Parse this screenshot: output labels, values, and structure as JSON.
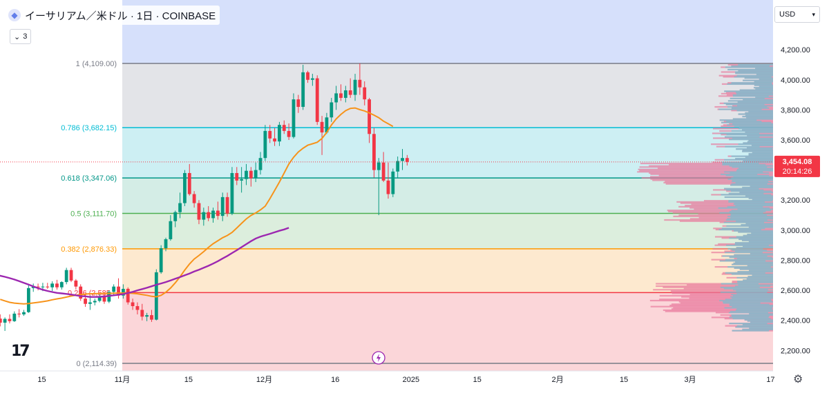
{
  "header": {
    "coin_icon": "ethereum-icon",
    "symbol_line": "イーサリアム／米ドル · 1日 · COINBASE"
  },
  "indicator_count": "3",
  "currency_selector": "USD",
  "settings_icon": "gear-icon",
  "logo_icon": "tradingview-logo",
  "event_icon": "lightning-icon",
  "price_label": {
    "price": "3,454.08",
    "countdown": "20:14:26",
    "color": "#f23645"
  },
  "colors": {
    "up": "#089981",
    "down": "#f23645",
    "ma_short": "#f7931a",
    "ma_long": "#9c27b0"
  },
  "chart_data": {
    "type": "candlestick",
    "y_range": [
      2114.39,
      4250
    ],
    "y_ticks": [
      "2,200.00",
      "2,400.00",
      "2,600.00",
      "2,800.00",
      "3,000.00",
      "3,200.00",
      "3,400.00",
      "3,600.00",
      "3,800.00",
      "4,000.00",
      "4,200.00"
    ],
    "y_tick_values": [
      2200,
      2400,
      2600,
      2800,
      3000,
      3200,
      3400,
      3600,
      3800,
      4000,
      4200
    ],
    "x_ticks": [
      {
        "label": "15",
        "day": -17
      },
      {
        "label": "11月",
        "day": 0
      },
      {
        "label": "15",
        "day": 14
      },
      {
        "label": "12月",
        "day": 30
      },
      {
        "label": "16",
        "day": 45
      },
      {
        "label": "2025",
        "day": 61
      },
      {
        "label": "15",
        "day": 75
      },
      {
        "label": "2月",
        "day": 92
      },
      {
        "label": "15",
        "day": 106
      },
      {
        "label": "3月",
        "day": 120
      },
      {
        "label": "17",
        "day": 137
      }
    ],
    "fib_levels": [
      {
        "label": "1 (4,109.00)",
        "value": 4109.0,
        "color": "#787b86"
      },
      {
        "label": "0.786 (3,682.15)",
        "value": 3682.15,
        "color": "#00bcd4"
      },
      {
        "label": "0.618 (3,347.06)",
        "value": 3347.06,
        "color": "#009688"
      },
      {
        "label": "0.5 (3,111.70)",
        "value": 3111.7,
        "color": "#4caf50"
      },
      {
        "label": "0.382 (2,876.33)",
        "value": 2876.33,
        "color": "#ff9800"
      },
      {
        "label": "0.236 (2,585...",
        "value": 2585.0,
        "color": "#f23645"
      },
      {
        "label": "0 (2,114.39)",
        "value": 2114.39,
        "color": "#787b86"
      }
    ],
    "candles": [
      {
        "o": 2412,
        "h": 2440,
        "l": 2360,
        "c": 2385
      },
      {
        "o": 2385,
        "h": 2420,
        "l": 2330,
        "c": 2410
      },
      {
        "o": 2410,
        "h": 2440,
        "l": 2380,
        "c": 2395
      },
      {
        "o": 2395,
        "h": 2460,
        "l": 2390,
        "c": 2445
      },
      {
        "o": 2445,
        "h": 2475,
        "l": 2420,
        "c": 2440
      },
      {
        "o": 2440,
        "h": 2470,
        "l": 2430,
        "c": 2455
      },
      {
        "o": 2455,
        "h": 2640,
        "l": 2450,
        "c": 2615
      },
      {
        "o": 2615,
        "h": 2645,
        "l": 2590,
        "c": 2625
      },
      {
        "o": 2625,
        "h": 2645,
        "l": 2600,
        "c": 2620
      },
      {
        "o": 2620,
        "h": 2650,
        "l": 2595,
        "c": 2625
      },
      {
        "o": 2625,
        "h": 2650,
        "l": 2610,
        "c": 2620
      },
      {
        "o": 2620,
        "h": 2660,
        "l": 2595,
        "c": 2645
      },
      {
        "o": 2645,
        "h": 2670,
        "l": 2605,
        "c": 2620
      },
      {
        "o": 2620,
        "h": 2660,
        "l": 2605,
        "c": 2655
      },
      {
        "o": 2655,
        "h": 2750,
        "l": 2640,
        "c": 2735
      },
      {
        "o": 2735,
        "h": 2750,
        "l": 2655,
        "c": 2665
      },
      {
        "o": 2665,
        "h": 2675,
        "l": 2605,
        "c": 2625
      },
      {
        "o": 2625,
        "h": 2640,
        "l": 2530,
        "c": 2545
      },
      {
        "o": 2545,
        "h": 2580,
        "l": 2490,
        "c": 2510
      },
      {
        "o": 2510,
        "h": 2565,
        "l": 2470,
        "c": 2520
      },
      {
        "o": 2520,
        "h": 2545,
        "l": 2500,
        "c": 2530
      },
      {
        "o": 2530,
        "h": 2575,
        "l": 2520,
        "c": 2555
      },
      {
        "o": 2555,
        "h": 2580,
        "l": 2510,
        "c": 2525
      },
      {
        "o": 2525,
        "h": 2600,
        "l": 2515,
        "c": 2590
      },
      {
        "o": 2590,
        "h": 2640,
        "l": 2570,
        "c": 2625
      },
      {
        "o": 2625,
        "h": 2680,
        "l": 2545,
        "c": 2565
      },
      {
        "o": 2565,
        "h": 2640,
        "l": 2545,
        "c": 2610
      },
      {
        "o": 2610,
        "h": 2620,
        "l": 2505,
        "c": 2520
      },
      {
        "o": 2520,
        "h": 2545,
        "l": 2470,
        "c": 2495
      },
      {
        "o": 2495,
        "h": 2520,
        "l": 2440,
        "c": 2470
      },
      {
        "o": 2470,
        "h": 2510,
        "l": 2400,
        "c": 2425
      },
      {
        "o": 2425,
        "h": 2450,
        "l": 2395,
        "c": 2435
      },
      {
        "o": 2435,
        "h": 2470,
        "l": 2390,
        "c": 2405
      },
      {
        "o": 2405,
        "h": 2740,
        "l": 2400,
        "c": 2720
      },
      {
        "o": 2720,
        "h": 2900,
        "l": 2710,
        "c": 2880
      },
      {
        "o": 2880,
        "h": 2950,
        "l": 2860,
        "c": 2940
      },
      {
        "o": 2940,
        "h": 3100,
        "l": 2930,
        "c": 3060
      },
      {
        "o": 3060,
        "h": 3130,
        "l": 3020,
        "c": 3120
      },
      {
        "o": 3120,
        "h": 3250,
        "l": 3080,
        "c": 3180
      },
      {
        "o": 3180,
        "h": 3400,
        "l": 3160,
        "c": 3380
      },
      {
        "o": 3380,
        "h": 3440,
        "l": 3230,
        "c": 3240
      },
      {
        "o": 3240,
        "h": 3260,
        "l": 3150,
        "c": 3180
      },
      {
        "o": 3180,
        "h": 3200,
        "l": 3040,
        "c": 3070
      },
      {
        "o": 3070,
        "h": 3150,
        "l": 3030,
        "c": 3120
      },
      {
        "o": 3120,
        "h": 3160,
        "l": 3060,
        "c": 3080
      },
      {
        "o": 3080,
        "h": 3150,
        "l": 3050,
        "c": 3130
      },
      {
        "o": 3130,
        "h": 3190,
        "l": 3070,
        "c": 3095
      },
      {
        "o": 3095,
        "h": 3250,
        "l": 3060,
        "c": 3220
      },
      {
        "o": 3220,
        "h": 3250,
        "l": 3090,
        "c": 3110
      },
      {
        "o": 3110,
        "h": 3420,
        "l": 3100,
        "c": 3380
      },
      {
        "o": 3380,
        "h": 3420,
        "l": 3300,
        "c": 3330
      },
      {
        "o": 3330,
        "h": 3420,
        "l": 3250,
        "c": 3340
      },
      {
        "o": 3340,
        "h": 3440,
        "l": 3300,
        "c": 3395
      },
      {
        "o": 3395,
        "h": 3420,
        "l": 3290,
        "c": 3345
      },
      {
        "o": 3345,
        "h": 3450,
        "l": 3320,
        "c": 3400
      },
      {
        "o": 3400,
        "h": 3520,
        "l": 3370,
        "c": 3480
      },
      {
        "o": 3480,
        "h": 3700,
        "l": 3460,
        "c": 3660
      },
      {
        "o": 3660,
        "h": 3700,
        "l": 3580,
        "c": 3610
      },
      {
        "o": 3610,
        "h": 3680,
        "l": 3560,
        "c": 3590
      },
      {
        "o": 3590,
        "h": 3720,
        "l": 3560,
        "c": 3700
      },
      {
        "o": 3700,
        "h": 3730,
        "l": 3640,
        "c": 3660
      },
      {
        "o": 3660,
        "h": 3710,
        "l": 3600,
        "c": 3620
      },
      {
        "o": 3620,
        "h": 3910,
        "l": 3610,
        "c": 3870
      },
      {
        "o": 3870,
        "h": 3900,
        "l": 3780,
        "c": 3820
      },
      {
        "o": 3820,
        "h": 4100,
        "l": 3800,
        "c": 4050
      },
      {
        "o": 4050,
        "h": 4060,
        "l": 3980,
        "c": 4000
      },
      {
        "o": 4000,
        "h": 4040,
        "l": 3960,
        "c": 4010
      },
      {
        "o": 4010,
        "h": 4030,
        "l": 3700,
        "c": 3720
      },
      {
        "o": 3720,
        "h": 3760,
        "l": 3500,
        "c": 3650
      },
      {
        "o": 3650,
        "h": 3780,
        "l": 3640,
        "c": 3750
      },
      {
        "o": 3750,
        "h": 3880,
        "l": 3720,
        "c": 3850
      },
      {
        "o": 3850,
        "h": 3960,
        "l": 3800,
        "c": 3910
      },
      {
        "o": 3910,
        "h": 3970,
        "l": 3860,
        "c": 3880
      },
      {
        "o": 3880,
        "h": 3960,
        "l": 3850,
        "c": 3930
      },
      {
        "o": 3930,
        "h": 4010,
        "l": 3880,
        "c": 3900
      },
      {
        "o": 3900,
        "h": 4040,
        "l": 3860,
        "c": 4000
      },
      {
        "o": 4000,
        "h": 4109,
        "l": 3900,
        "c": 3950
      },
      {
        "o": 3950,
        "h": 3990,
        "l": 3830,
        "c": 3870
      },
      {
        "o": 3870,
        "h": 3880,
        "l": 3580,
        "c": 3640
      },
      {
        "o": 3640,
        "h": 3680,
        "l": 3350,
        "c": 3400
      },
      {
        "o": 3400,
        "h": 3480,
        "l": 3100,
        "c": 3450
      },
      {
        "o": 3450,
        "h": 3520,
        "l": 3320,
        "c": 3330
      },
      {
        "o": 3330,
        "h": 3450,
        "l": 3210,
        "c": 3240
      },
      {
        "o": 3240,
        "h": 3410,
        "l": 3220,
        "c": 3390
      },
      {
        "o": 3390,
        "h": 3490,
        "l": 3350,
        "c": 3460
      },
      {
        "o": 3460,
        "h": 3540,
        "l": 3400,
        "c": 3480
      },
      {
        "o": 3480,
        "h": 3500,
        "l": 3430,
        "c": 3454.08
      }
    ],
    "ma_short": [
      2540,
      2530,
      2520,
      2515,
      2512,
      2510,
      2512,
      2516,
      2520,
      2525,
      2530,
      2537,
      2543,
      2548,
      2555,
      2562,
      2568,
      2572,
      2575,
      2577,
      2578,
      2579,
      2580,
      2580,
      2581,
      2582,
      2582,
      2582,
      2580,
      2577,
      2572,
      2567,
      2560,
      2557,
      2567,
      2587,
      2615,
      2650,
      2690,
      2735,
      2775,
      2808,
      2832,
      2857,
      2885,
      2910,
      2930,
      2950,
      2965,
      2985,
      3015,
      3045,
      3075,
      3098,
      3115,
      3135,
      3160,
      3210,
      3265,
      3320,
      3380,
      3440,
      3485,
      3520,
      3545,
      3565,
      3575,
      3585,
      3610,
      3650,
      3700,
      3740,
      3770,
      3795,
      3810,
      3813,
      3802,
      3793,
      3780,
      3765,
      3748,
      3725,
      3708,
      3690
    ],
    "ma_long": [
      2745,
      2735,
      2726,
      2718,
      2711,
      2704,
      2697,
      2690,
      2681,
      2672,
      2661,
      2650,
      2638,
      2626,
      2614,
      2604,
      2596,
      2589,
      2583,
      2580,
      2576,
      2572,
      2567,
      2562,
      2560,
      2556,
      2556,
      2557,
      2559,
      2563,
      2567,
      2571,
      2575,
      2582,
      2590,
      2600,
      2608,
      2617,
      2627,
      2637,
      2646,
      2655,
      2666,
      2677,
      2688,
      2700,
      2712,
      2725,
      2737,
      2750,
      2763,
      2778,
      2794,
      2812,
      2829,
      2848,
      2867,
      2887,
      2907,
      2927,
      2945,
      2957,
      2967,
      2976,
      2986,
      2996,
      3005,
      3016
    ]
  }
}
